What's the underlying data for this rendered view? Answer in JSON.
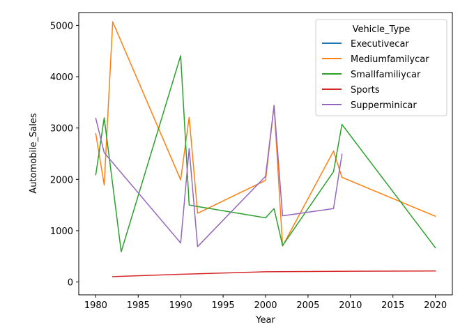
{
  "chart_data": {
    "type": "line",
    "title": "",
    "xlabel": "Year",
    "ylabel": "Automobile_Sales",
    "xlim": [
      1978,
      2022
    ],
    "ylim": [
      -250,
      5250
    ],
    "xticks": [
      1980,
      1985,
      1990,
      1995,
      2000,
      2005,
      2010,
      2015,
      2020
    ],
    "yticks": [
      0,
      1000,
      2000,
      3000,
      4000,
      5000
    ],
    "grid": false,
    "legend": {
      "title": "Vehicle_Type",
      "position": "top-right"
    },
    "series": [
      {
        "name": "Executivecar",
        "color": "#1f77b4",
        "points": []
      },
      {
        "name": "Mediumfamilycar",
        "color": "#ff7f0e",
        "points": [
          [
            1980,
            2890
          ],
          [
            1981,
            1890
          ],
          [
            1982,
            5070
          ],
          [
            1990,
            1990
          ],
          [
            1991,
            3210
          ],
          [
            1992,
            1340
          ],
          [
            2000,
            1980
          ],
          [
            2001,
            3440
          ],
          [
            2002,
            700
          ],
          [
            2008,
            2550
          ],
          [
            2009,
            2040
          ],
          [
            2020,
            1280
          ]
        ]
      },
      {
        "name": "Smallfamiliycar",
        "color": "#2ca02c",
        "points": [
          [
            1980,
            2090
          ],
          [
            1981,
            3200
          ],
          [
            1983,
            590
          ],
          [
            1990,
            4410
          ],
          [
            1991,
            1500
          ],
          [
            1992,
            1470
          ],
          [
            2000,
            1250
          ],
          [
            2001,
            1430
          ],
          [
            2002,
            710
          ],
          [
            2008,
            2150
          ],
          [
            2009,
            3070
          ],
          [
            2020,
            670
          ]
        ]
      },
      {
        "name": "Sports",
        "color": "#d62728",
        "points": [
          [
            1982,
            105
          ],
          [
            1990,
            150
          ],
          [
            2000,
            200
          ],
          [
            2010,
            210
          ],
          [
            2020,
            215
          ]
        ]
      },
      {
        "name": "Supperminicar",
        "color": "#9467bd",
        "points": [
          [
            1980,
            3190
          ],
          [
            1981,
            2520
          ],
          [
            1990,
            760
          ],
          [
            1991,
            2600
          ],
          [
            1992,
            690
          ],
          [
            2000,
            2060
          ],
          [
            2001,
            3440
          ],
          [
            2002,
            1290
          ],
          [
            2008,
            1430
          ],
          [
            2009,
            2490
          ]
        ]
      }
    ]
  }
}
